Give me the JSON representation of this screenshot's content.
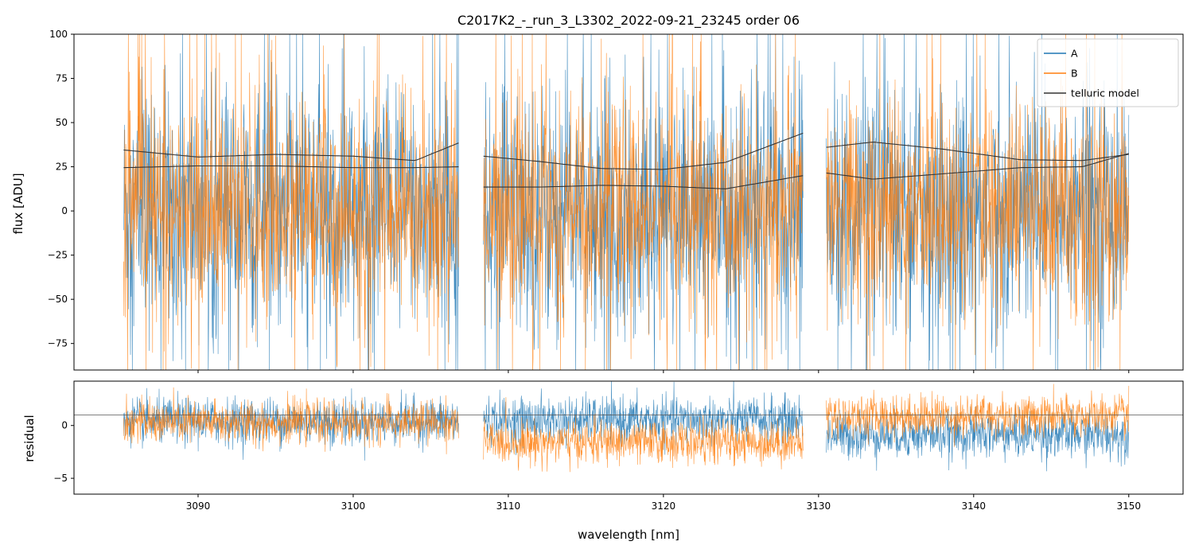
{
  "chart_data": {
    "type": "line",
    "title": "C2017K2_-_run_3_L3302_2022-09-21_23245  order 06",
    "xlabel": "wavelength [nm]",
    "xlim": [
      3082,
      3153.5
    ],
    "xticks": [
      3090,
      3100,
      3110,
      3120,
      3130,
      3140,
      3150
    ],
    "xtick_labels": [
      "3090",
      "3100",
      "3110",
      "3120",
      "3130",
      "3140",
      "3150"
    ],
    "segments": [
      [
        3085.2,
        3106.8
      ],
      [
        3108.4,
        3129.0
      ],
      [
        3130.5,
        3150.0
      ]
    ],
    "colors": {
      "A": "#1f77b4",
      "B": "#ff7f0e",
      "telluric": "#333333"
    },
    "legend": {
      "location": "upper right",
      "entries": [
        "A",
        "B",
        "telluric model"
      ]
    },
    "panels": [
      {
        "name": "flux",
        "ylabel": "flux [ADU]",
        "ylim": [
          -90,
          100
        ],
        "yticks": [
          -75,
          -50,
          -25,
          0,
          25,
          50,
          75,
          100
        ],
        "ytick_labels": [
          "−75",
          "−50",
          "−25",
          "0",
          "25",
          "50",
          "75",
          "100"
        ],
        "series": [
          {
            "name": "A",
            "type": "noisy-spectrum",
            "center": 0,
            "spread": 35,
            "spike_chance": 0.04
          },
          {
            "name": "B",
            "type": "noisy-spectrum",
            "center": 0,
            "spread": 30,
            "spike_chance": 0.04
          }
        ],
        "telluric_model": {
          "curve_1": [
            [
              3085.2,
              34.5
            ],
            [
              3090,
              30.5
            ],
            [
              3095,
              32
            ],
            [
              3100,
              31
            ],
            [
              3104,
              28.5
            ],
            [
              3106.8,
              38.5
            ],
            [
              3108.4,
              31
            ],
            [
              3112,
              28
            ],
            [
              3116,
              24
            ],
            [
              3120,
              23.5
            ],
            [
              3124,
              27.5
            ],
            [
              3129,
              44
            ],
            [
              3130.5,
              36
            ],
            [
              3133.5,
              39
            ],
            [
              3138,
              35
            ],
            [
              3143,
              29
            ],
            [
              3147,
              28.5
            ],
            [
              3150,
              32
            ]
          ],
          "curve_2": [
            [
              3085.2,
              24.5
            ],
            [
              3090,
              25.5
            ],
            [
              3095,
              25.5
            ],
            [
              3100,
              24.5
            ],
            [
              3104,
              24.5
            ],
            [
              3106.8,
              25
            ],
            [
              3108.4,
              13.5
            ],
            [
              3112,
              13.5
            ],
            [
              3116,
              14.5
            ],
            [
              3120,
              14
            ],
            [
              3124,
              12.5
            ],
            [
              3129,
              20
            ],
            [
              3130.5,
              21.5
            ],
            [
              3133.5,
              18
            ],
            [
              3138,
              21
            ],
            [
              3143,
              24.5
            ],
            [
              3147,
              25
            ],
            [
              3150,
              32.5
            ]
          ]
        }
      },
      {
        "name": "residual",
        "ylabel": "residual",
        "ylim": [
          -6.5,
          4.2
        ],
        "yticks": [
          -5,
          0
        ],
        "ytick_labels": [
          "−5",
          "0"
        ],
        "reference_line": 1.0,
        "series": [
          {
            "name": "A",
            "segment_offsets": [
              0.4,
              0.5,
              -0.9
            ],
            "spread": 1.1
          },
          {
            "name": "B",
            "segment_offsets": [
              0.3,
              -1.6,
              0.9
            ],
            "spread": 1.0
          }
        ]
      }
    ]
  }
}
